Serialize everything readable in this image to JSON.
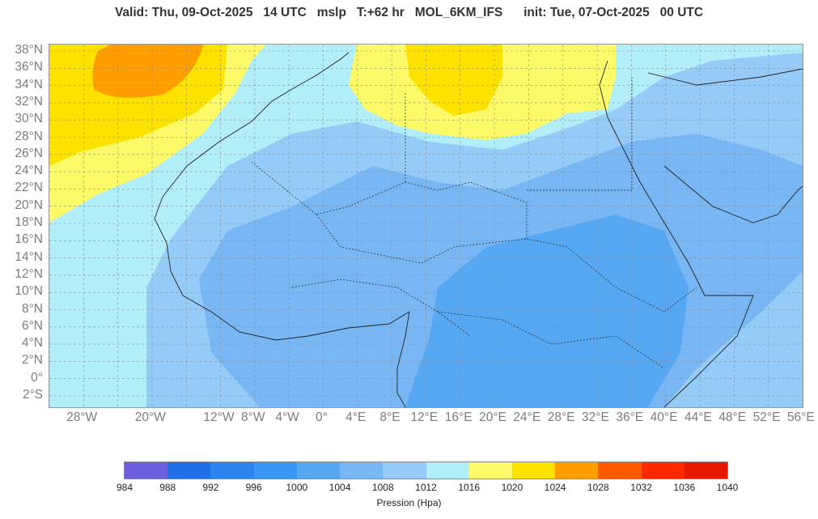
{
  "header": {
    "title": "Valid: Thu, 09-Oct-2025   14 UTC   mslp   T:+62 hr   MOL_6KM_IFS      init: Tue, 07-Oct-2025   00 UTC"
  },
  "map": {
    "lat_labels": [
      "38°N",
      "36°N",
      "34°N",
      "32°N",
      "30°N",
      "28°N",
      "26°N",
      "24°N",
      "22°N",
      "20°N",
      "18°N",
      "16°N",
      "14°N",
      "12°N",
      "10°N",
      "8°N",
      "6°N",
      "4°N",
      "2°N",
      "0°",
      "2°S"
    ],
    "lon_labels": [
      "28°W",
      "20°W",
      "12°W",
      "8°W",
      "4°W",
      "0°",
      "4°E",
      "8°E",
      "12°E",
      "16°E",
      "20°E",
      "24°E",
      "28°E",
      "32°E",
      "36°E",
      "40°E",
      "44°E",
      "48°E",
      "52°E",
      "56°E"
    ],
    "background_color": "#b2eef8"
  },
  "colorbar": {
    "title": "Pression (Hpa)",
    "ticks": [
      "984",
      "988",
      "992",
      "996",
      "1000",
      "1004",
      "1008",
      "1012",
      "1016",
      "1020",
      "1024",
      "1028",
      "1032",
      "1036",
      "1040"
    ],
    "colors": [
      "#6b5fdc",
      "#1e6fe8",
      "#2e84ef",
      "#3b95f2",
      "#56a8f2",
      "#78b6f4",
      "#96cbf7",
      "#b2eef8",
      "#fdfa6a",
      "#fde200",
      "#fe9e00",
      "#fe5a00",
      "#fe2800",
      "#e41900"
    ]
  }
}
